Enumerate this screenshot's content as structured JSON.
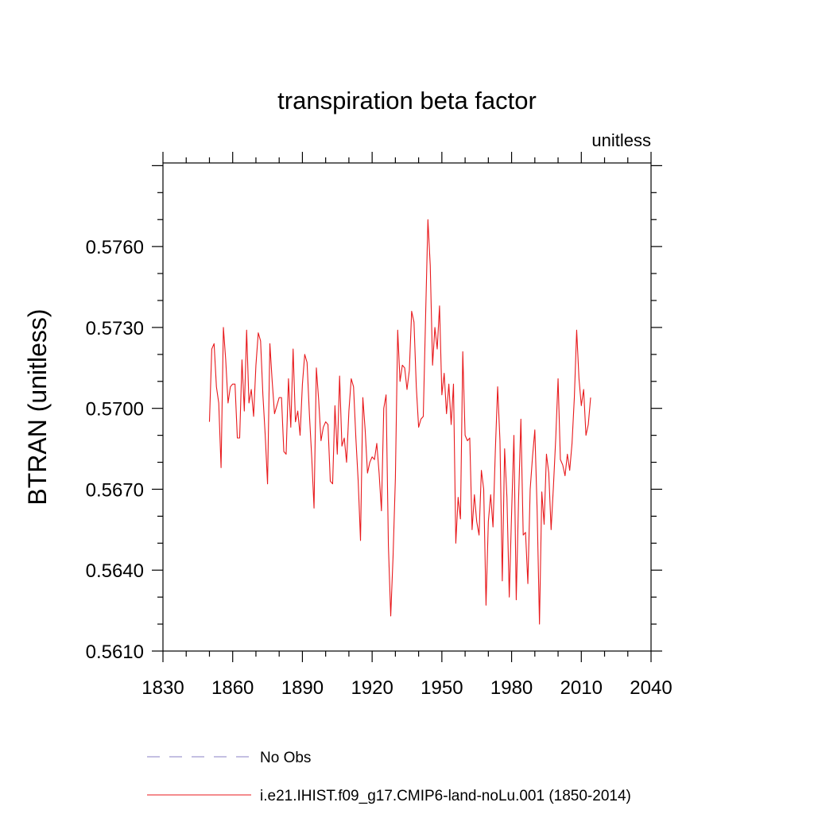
{
  "chart_data": {
    "type": "line",
    "title": "transpiration beta factor",
    "units_label": "unitless",
    "ylabel": "BTRAN  (unitless)",
    "xlabel": "",
    "xlim": [
      1830,
      2040
    ],
    "ylim": [
      0.561,
      0.5791
    ],
    "xticks": [
      1830,
      1860,
      1890,
      1920,
      1950,
      1980,
      2010,
      2040
    ],
    "xtick_labels": [
      "1830",
      "1860",
      "1890",
      "1920",
      "1950",
      "1980",
      "2010",
      "2040"
    ],
    "yticks": [
      0.561,
      0.564,
      0.567,
      0.57,
      0.573,
      0.576
    ],
    "ytick_labels": [
      "0.5610",
      "0.5640",
      "0.5670",
      "0.5700",
      "0.5730",
      "0.5760"
    ],
    "grid": false,
    "legend_position": "bottom",
    "series": [
      {
        "name": "No Obs",
        "color": "#8a7fc4",
        "line_style": "dashed",
        "x": [],
        "values": []
      },
      {
        "name": "i.e21.IHIST.f09_g17.CMIP6-land-noLu.001 (1850-2014)",
        "color": "#e8191c",
        "line_style": "solid",
        "x_start": 1850,
        "x_end": 2014,
        "values": [
          0.5695,
          0.5722,
          0.5724,
          0.5708,
          0.5702,
          0.5678,
          0.573,
          0.5718,
          0.5702,
          0.5708,
          0.5709,
          0.5709,
          0.5689,
          0.5689,
          0.5718,
          0.5699,
          0.5729,
          0.5702,
          0.5707,
          0.5697,
          0.5716,
          0.5728,
          0.5725,
          0.5705,
          0.569,
          0.5672,
          0.5724,
          0.571,
          0.5698,
          0.5701,
          0.5704,
          0.5704,
          0.5684,
          0.5683,
          0.5711,
          0.5693,
          0.5722,
          0.5695,
          0.5699,
          0.569,
          0.5709,
          0.572,
          0.5717,
          0.5698,
          0.5682,
          0.5663,
          0.5715,
          0.5703,
          0.5688,
          0.5693,
          0.5695,
          0.5694,
          0.5673,
          0.5672,
          0.5701,
          0.5683,
          0.5712,
          0.5686,
          0.5689,
          0.568,
          0.5699,
          0.5711,
          0.5708,
          0.5689,
          0.5673,
          0.5651,
          0.5704,
          0.5692,
          0.5676,
          0.568,
          0.5682,
          0.5681,
          0.5687,
          0.5676,
          0.5662,
          0.57,
          0.5705,
          0.5649,
          0.5623,
          0.5645,
          0.5674,
          0.5729,
          0.571,
          0.5716,
          0.5715,
          0.5707,
          0.5714,
          0.5736,
          0.5732,
          0.5708,
          0.5693,
          0.5696,
          0.5697,
          0.5734,
          0.577,
          0.5753,
          0.5716,
          0.573,
          0.5722,
          0.5738,
          0.5705,
          0.5713,
          0.5698,
          0.5709,
          0.5694,
          0.5709,
          0.565,
          0.5667,
          0.5659,
          0.5721,
          0.569,
          0.5688,
          0.5689,
          0.5655,
          0.5668,
          0.5658,
          0.5653,
          0.5677,
          0.567,
          0.5627,
          0.5658,
          0.5668,
          0.5656,
          0.5684,
          0.5708,
          0.5688,
          0.5636,
          0.5685,
          0.5667,
          0.563,
          0.5661,
          0.569,
          0.5629,
          0.5666,
          0.5696,
          0.5653,
          0.5654,
          0.5635,
          0.567,
          0.5682,
          0.5692,
          0.5662,
          0.562,
          0.5669,
          0.5657,
          0.5683,
          0.5676,
          0.5655,
          0.5671,
          0.5689,
          0.5711,
          0.5681,
          0.5679,
          0.5675,
          0.5683,
          0.5677,
          0.5687,
          0.5704,
          0.5729,
          0.5711,
          0.5701,
          0.5707,
          0.569,
          0.5694,
          0.5704
        ]
      }
    ]
  }
}
